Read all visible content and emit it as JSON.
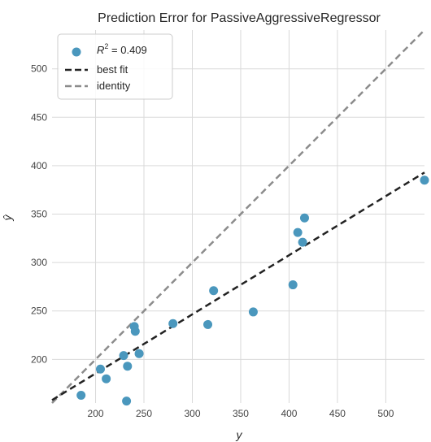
{
  "chart_data": {
    "type": "scatter",
    "title": "Prediction Error for PassiveAggressiveRegressor",
    "xlabel": "y",
    "ylabel": "ŷ",
    "xlim": [
      155,
      540
    ],
    "ylim": [
      155,
      540
    ],
    "xticks": [
      "200",
      "250",
      "300",
      "350",
      "400",
      "450",
      "500"
    ],
    "yticks": [
      "200",
      "250",
      "300",
      "350",
      "400",
      "450",
      "500"
    ],
    "grid": true,
    "legend_position": "top-left",
    "legend": {
      "r2_label": "R",
      "r2_sup": "2",
      "r2_value": " = 0.409",
      "best_fit": "best fit",
      "identity": "identity"
    },
    "points": [
      {
        "x": 185,
        "y": 163
      },
      {
        "x": 205,
        "y": 190
      },
      {
        "x": 211,
        "y": 180
      },
      {
        "x": 229,
        "y": 204
      },
      {
        "x": 233,
        "y": 193
      },
      {
        "x": 232,
        "y": 157
      },
      {
        "x": 240,
        "y": 234
      },
      {
        "x": 241,
        "y": 229
      },
      {
        "x": 245,
        "y": 206
      },
      {
        "x": 280,
        "y": 237
      },
      {
        "x": 316,
        "y": 236
      },
      {
        "x": 322,
        "y": 271
      },
      {
        "x": 363,
        "y": 249
      },
      {
        "x": 404,
        "y": 277
      },
      {
        "x": 409,
        "y": 331
      },
      {
        "x": 414,
        "y": 321
      },
      {
        "x": 416,
        "y": 346
      },
      {
        "x": 540,
        "y": 385
      }
    ],
    "best_fit_line": {
      "x": [
        155,
        540
      ],
      "y": [
        158,
        393
      ]
    },
    "identity_line": {
      "x": [
        155,
        540
      ],
      "y": [
        155,
        540
      ]
    },
    "colors": {
      "points": "#4a97bd",
      "best_fit": "#222222",
      "identity": "#8c8c8c",
      "grid": "#d9d9d9"
    }
  }
}
